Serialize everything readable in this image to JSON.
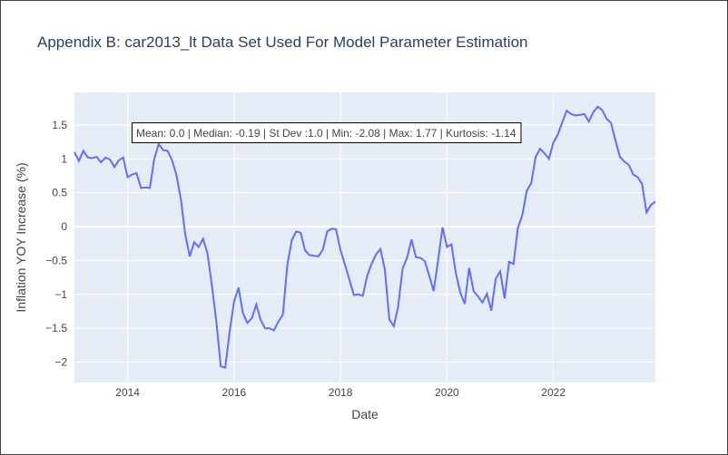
{
  "chart_data": {
    "type": "line",
    "title": "Appendix B: car2013_lt Data Set Used For Model Parameter Estimation",
    "xlabel": "Date",
    "ylabel": "Inflation YOY Increase (%)",
    "x_tick_labels": [
      "2014",
      "2016",
      "2018",
      "2020",
      "2022"
    ],
    "x_tick_years": [
      2014,
      2016,
      2018,
      2020,
      2022
    ],
    "y_tick_labels": [
      "1.5",
      "1",
      "0.5",
      "0",
      "−0.5",
      "−1",
      "−1.5",
      "−2"
    ],
    "y_tick_values": [
      1.5,
      1,
      0.5,
      0,
      -0.5,
      -1,
      -1.5,
      -2
    ],
    "xlim": [
      "2013-01",
      "2023-12"
    ],
    "ylim": [
      -2.3,
      1.98
    ],
    "grid": true,
    "line_color": "#636efa",
    "plot_bg": "#e5ecf6",
    "annotation": "Mean: 0.0 | Median: -0.19 | St Dev :1.0 | Min: -2.08 | Max: 1.77 | Kurtosis: -1.14",
    "series": [
      {
        "x": [
          "2013-01",
          "2013-02",
          "2013-03",
          "2013-04",
          "2013-05",
          "2013-06",
          "2013-07",
          "2013-08",
          "2013-09",
          "2013-10",
          "2013-11",
          "2013-12",
          "2014-01",
          "2014-02",
          "2014-03",
          "2014-04",
          "2014-05",
          "2014-06",
          "2014-07",
          "2014-08",
          "2014-09",
          "2014-10",
          "2014-11",
          "2014-12",
          "2015-01",
          "2015-02",
          "2015-03",
          "2015-04",
          "2015-05",
          "2015-06",
          "2015-07",
          "2015-08",
          "2015-09",
          "2015-10",
          "2015-11",
          "2015-12",
          "2016-01",
          "2016-02",
          "2016-03",
          "2016-04",
          "2016-05",
          "2016-06",
          "2016-07",
          "2016-08",
          "2016-09",
          "2016-10",
          "2016-11",
          "2016-12",
          "2017-01",
          "2017-02",
          "2017-03",
          "2017-04",
          "2017-05",
          "2017-06",
          "2017-07",
          "2017-08",
          "2017-09",
          "2017-10",
          "2017-11",
          "2017-12",
          "2018-01",
          "2018-02",
          "2018-03",
          "2018-04",
          "2018-05",
          "2018-06",
          "2018-07",
          "2018-08",
          "2018-09",
          "2018-10",
          "2018-11",
          "2018-12",
          "2019-01",
          "2019-02",
          "2019-03",
          "2019-04",
          "2019-05",
          "2019-06",
          "2019-07",
          "2019-08",
          "2019-09",
          "2019-10",
          "2019-11",
          "2019-12",
          "2020-01",
          "2020-02",
          "2020-03",
          "2020-04",
          "2020-05",
          "2020-06",
          "2020-07",
          "2020-08",
          "2020-09",
          "2020-10",
          "2020-11",
          "2020-12",
          "2021-01",
          "2021-02",
          "2021-03",
          "2021-04",
          "2021-05",
          "2021-06",
          "2021-07",
          "2021-08",
          "2021-09",
          "2021-10",
          "2021-11",
          "2021-12",
          "2022-01",
          "2022-02",
          "2022-03",
          "2022-04",
          "2022-05",
          "2022-06",
          "2022-07",
          "2022-08",
          "2022-09",
          "2022-10",
          "2022-11",
          "2022-12",
          "2023-01",
          "2023-02",
          "2023-03",
          "2023-04",
          "2023-05",
          "2023-06",
          "2023-07",
          "2023-08",
          "2023-09",
          "2023-10",
          "2023-11",
          "2023-12"
        ],
        "y": [
          1.1,
          0.97,
          1.12,
          1.02,
          1.01,
          1.03,
          0.95,
          1.02,
          0.99,
          0.88,
          0.98,
          1.02,
          0.73,
          0.77,
          0.79,
          0.57,
          0.58,
          0.57,
          1.0,
          1.22,
          1.13,
          1.12,
          0.98,
          0.76,
          0.4,
          -0.12,
          -0.44,
          -0.23,
          -0.3,
          -0.18,
          -0.4,
          -0.88,
          -1.4,
          -2.06,
          -2.08,
          -1.55,
          -1.1,
          -0.9,
          -1.28,
          -1.42,
          -1.35,
          -1.15,
          -1.38,
          -1.5,
          -1.5,
          -1.53,
          -1.4,
          -1.3,
          -0.57,
          -0.2,
          -0.07,
          -0.09,
          -0.35,
          -0.42,
          -0.43,
          -0.44,
          -0.34,
          -0.07,
          -0.03,
          -0.04,
          -0.35,
          -0.56,
          -0.78,
          -1.01,
          -1.0,
          -1.02,
          -0.73,
          -0.55,
          -0.41,
          -0.33,
          -0.64,
          -1.37,
          -1.47,
          -1.18,
          -0.62,
          -0.46,
          -0.19,
          -0.45,
          -0.46,
          -0.51,
          -0.72,
          -0.95,
          -0.5,
          -0.01,
          -0.3,
          -0.26,
          -0.69,
          -0.97,
          -1.14,
          -0.61,
          -0.95,
          -1.03,
          -1.12,
          -0.99,
          -1.24,
          -0.77,
          -0.66,
          -1.06,
          -0.52,
          -0.55,
          -0.02,
          0.17,
          0.53,
          0.64,
          1.03,
          1.15,
          1.08,
          1.0,
          1.24,
          1.36,
          1.54,
          1.71,
          1.66,
          1.64,
          1.65,
          1.66,
          1.55,
          1.69,
          1.77,
          1.72,
          1.59,
          1.53,
          1.27,
          1.03,
          0.96,
          0.91,
          0.77,
          0.73,
          0.63,
          0.21,
          0.32,
          0.37
        ]
      }
    ]
  }
}
